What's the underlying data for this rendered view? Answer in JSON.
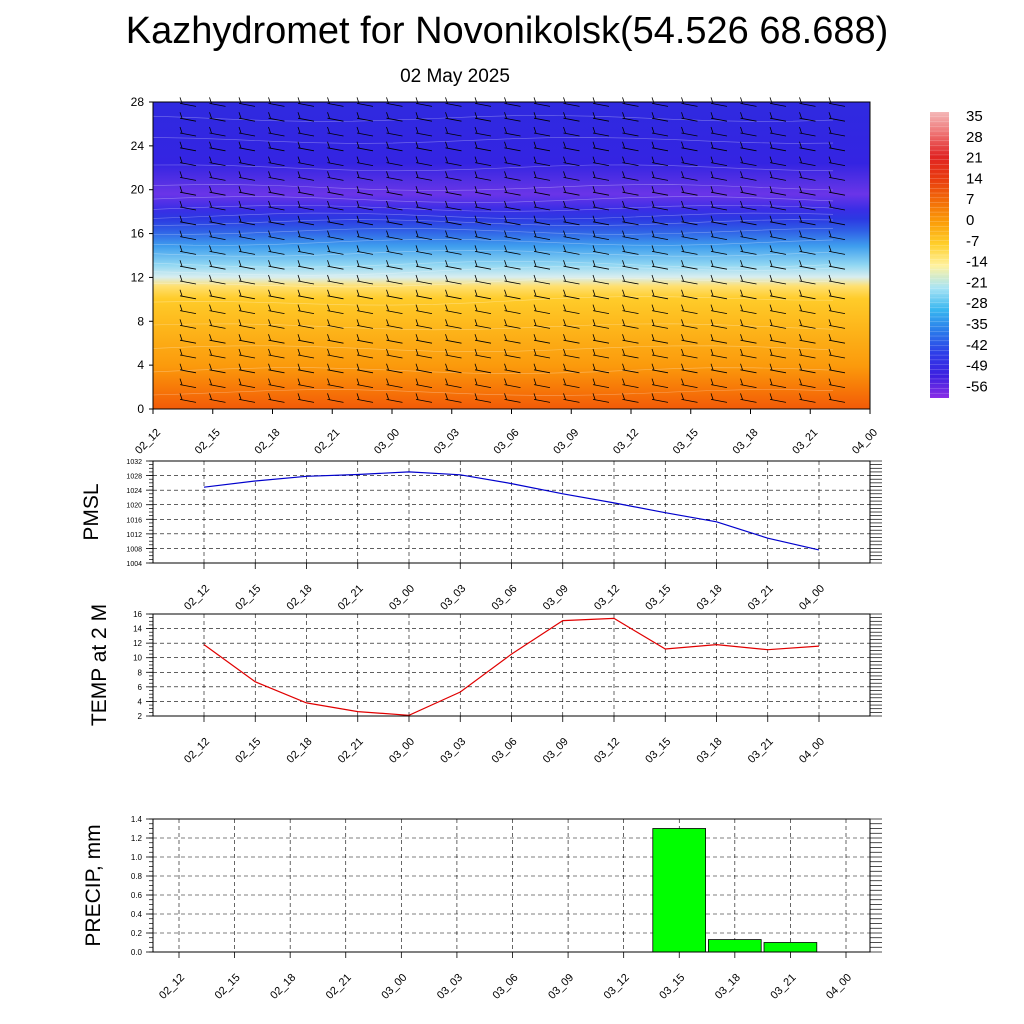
{
  "header": {
    "title": "Kazhydromet for Novonikolsk(54.526 68.688)",
    "date": "02 May 2025"
  },
  "colors": {
    "pmsl_line": "#0000cc",
    "temp_line": "#e00000",
    "precip_bar": "#00ff00",
    "precip_edge": "#000000"
  },
  "colorbar": {
    "labels": [
      "35",
      "28",
      "21",
      "14",
      "7",
      "0",
      "-7",
      "-14",
      "-21",
      "-28",
      "-35",
      "-42",
      "-49",
      "-56"
    ],
    "colors": [
      "#f4b8b8",
      "#ee7070",
      "#e02424",
      "#e83a10",
      "#f26a08",
      "#fb9d08",
      "#ffcf2a",
      "#fff2a0",
      "#a8e4f4",
      "#38b6f0",
      "#2a78ea",
      "#2e3ce8",
      "#3c20e0",
      "#8a2ee6"
    ]
  },
  "chart_data": [
    {
      "type": "heatmap",
      "name": "cross-section",
      "x_ticks": [
        "02_12",
        "02_15",
        "02_18",
        "02_21",
        "03_00",
        "03_03",
        "03_06",
        "03_09",
        "03_12",
        "03_15",
        "03_18",
        "03_21",
        "04_00"
      ],
      "y_ticks": [
        "0",
        "4",
        "8",
        "12",
        "16",
        "20",
        "24",
        "28"
      ],
      "ylim": [
        0,
        28
      ],
      "layers": [
        {
          "from": 0,
          "to": 3,
          "label": "above 7"
        },
        {
          "from": 3,
          "to": 11,
          "label": "0 to 7"
        },
        {
          "from": 11,
          "to": 13,
          "label": "-14 to -7"
        },
        {
          "from": 13,
          "to": 17,
          "label": "-42 to -21"
        },
        {
          "from": 17,
          "to": 28,
          "label": "-56 to -42"
        }
      ]
    },
    {
      "type": "line",
      "name": "PMSL",
      "ylabel": "PMSL",
      "categories": [
        "02_12",
        "02_15",
        "02_18",
        "02_21",
        "03_00",
        "03_03",
        "03_06",
        "03_09",
        "03_12",
        "03_15",
        "03_18",
        "03_21",
        "04_00"
      ],
      "values": [
        1024.8,
        1026.5,
        1027.8,
        1028.3,
        1029.0,
        1028.2,
        1025.8,
        1023.0,
        1020.5,
        1017.8,
        1015.3,
        1010.8,
        1007.6
      ],
      "ylim": [
        1004,
        1032
      ],
      "y_ticks": [
        "1004",
        "1008",
        "1012",
        "1016",
        "1020",
        "1024",
        "1028",
        "1032"
      ]
    },
    {
      "type": "line",
      "name": "TEMP",
      "ylabel": "TEMP at 2 M",
      "categories": [
        "02_12",
        "02_15",
        "02_18",
        "02_21",
        "03_00",
        "03_03",
        "03_06",
        "03_09",
        "03_12",
        "03_15",
        "03_18",
        "03_21",
        "04_00"
      ],
      "values": [
        11.8,
        6.7,
        3.8,
        2.6,
        2.1,
        5.3,
        10.5,
        15.1,
        15.4,
        11.2,
        11.8,
        11.1,
        11.6
      ],
      "ylim": [
        2,
        16
      ],
      "y_ticks": [
        "2",
        "4",
        "6",
        "8",
        "10",
        "12",
        "14",
        "16"
      ]
    },
    {
      "type": "bar",
      "name": "PRECIP",
      "ylabel": "PRECIP, mm",
      "categories": [
        "02_12",
        "02_15",
        "02_18",
        "02_21",
        "03_00",
        "03_03",
        "03_06",
        "03_09",
        "03_12",
        "03_15",
        "03_18",
        "03_21",
        "04_00"
      ],
      "values": [
        0,
        0,
        0,
        0,
        0,
        0,
        0,
        0,
        0,
        1.3,
        0.13,
        0.1,
        0
      ],
      "ylim": [
        0,
        1.4
      ],
      "y_ticks": [
        "0.0",
        "0.2",
        "0.4",
        "0.6",
        "0.8",
        "1.0",
        "1.2",
        "1.4"
      ]
    }
  ]
}
